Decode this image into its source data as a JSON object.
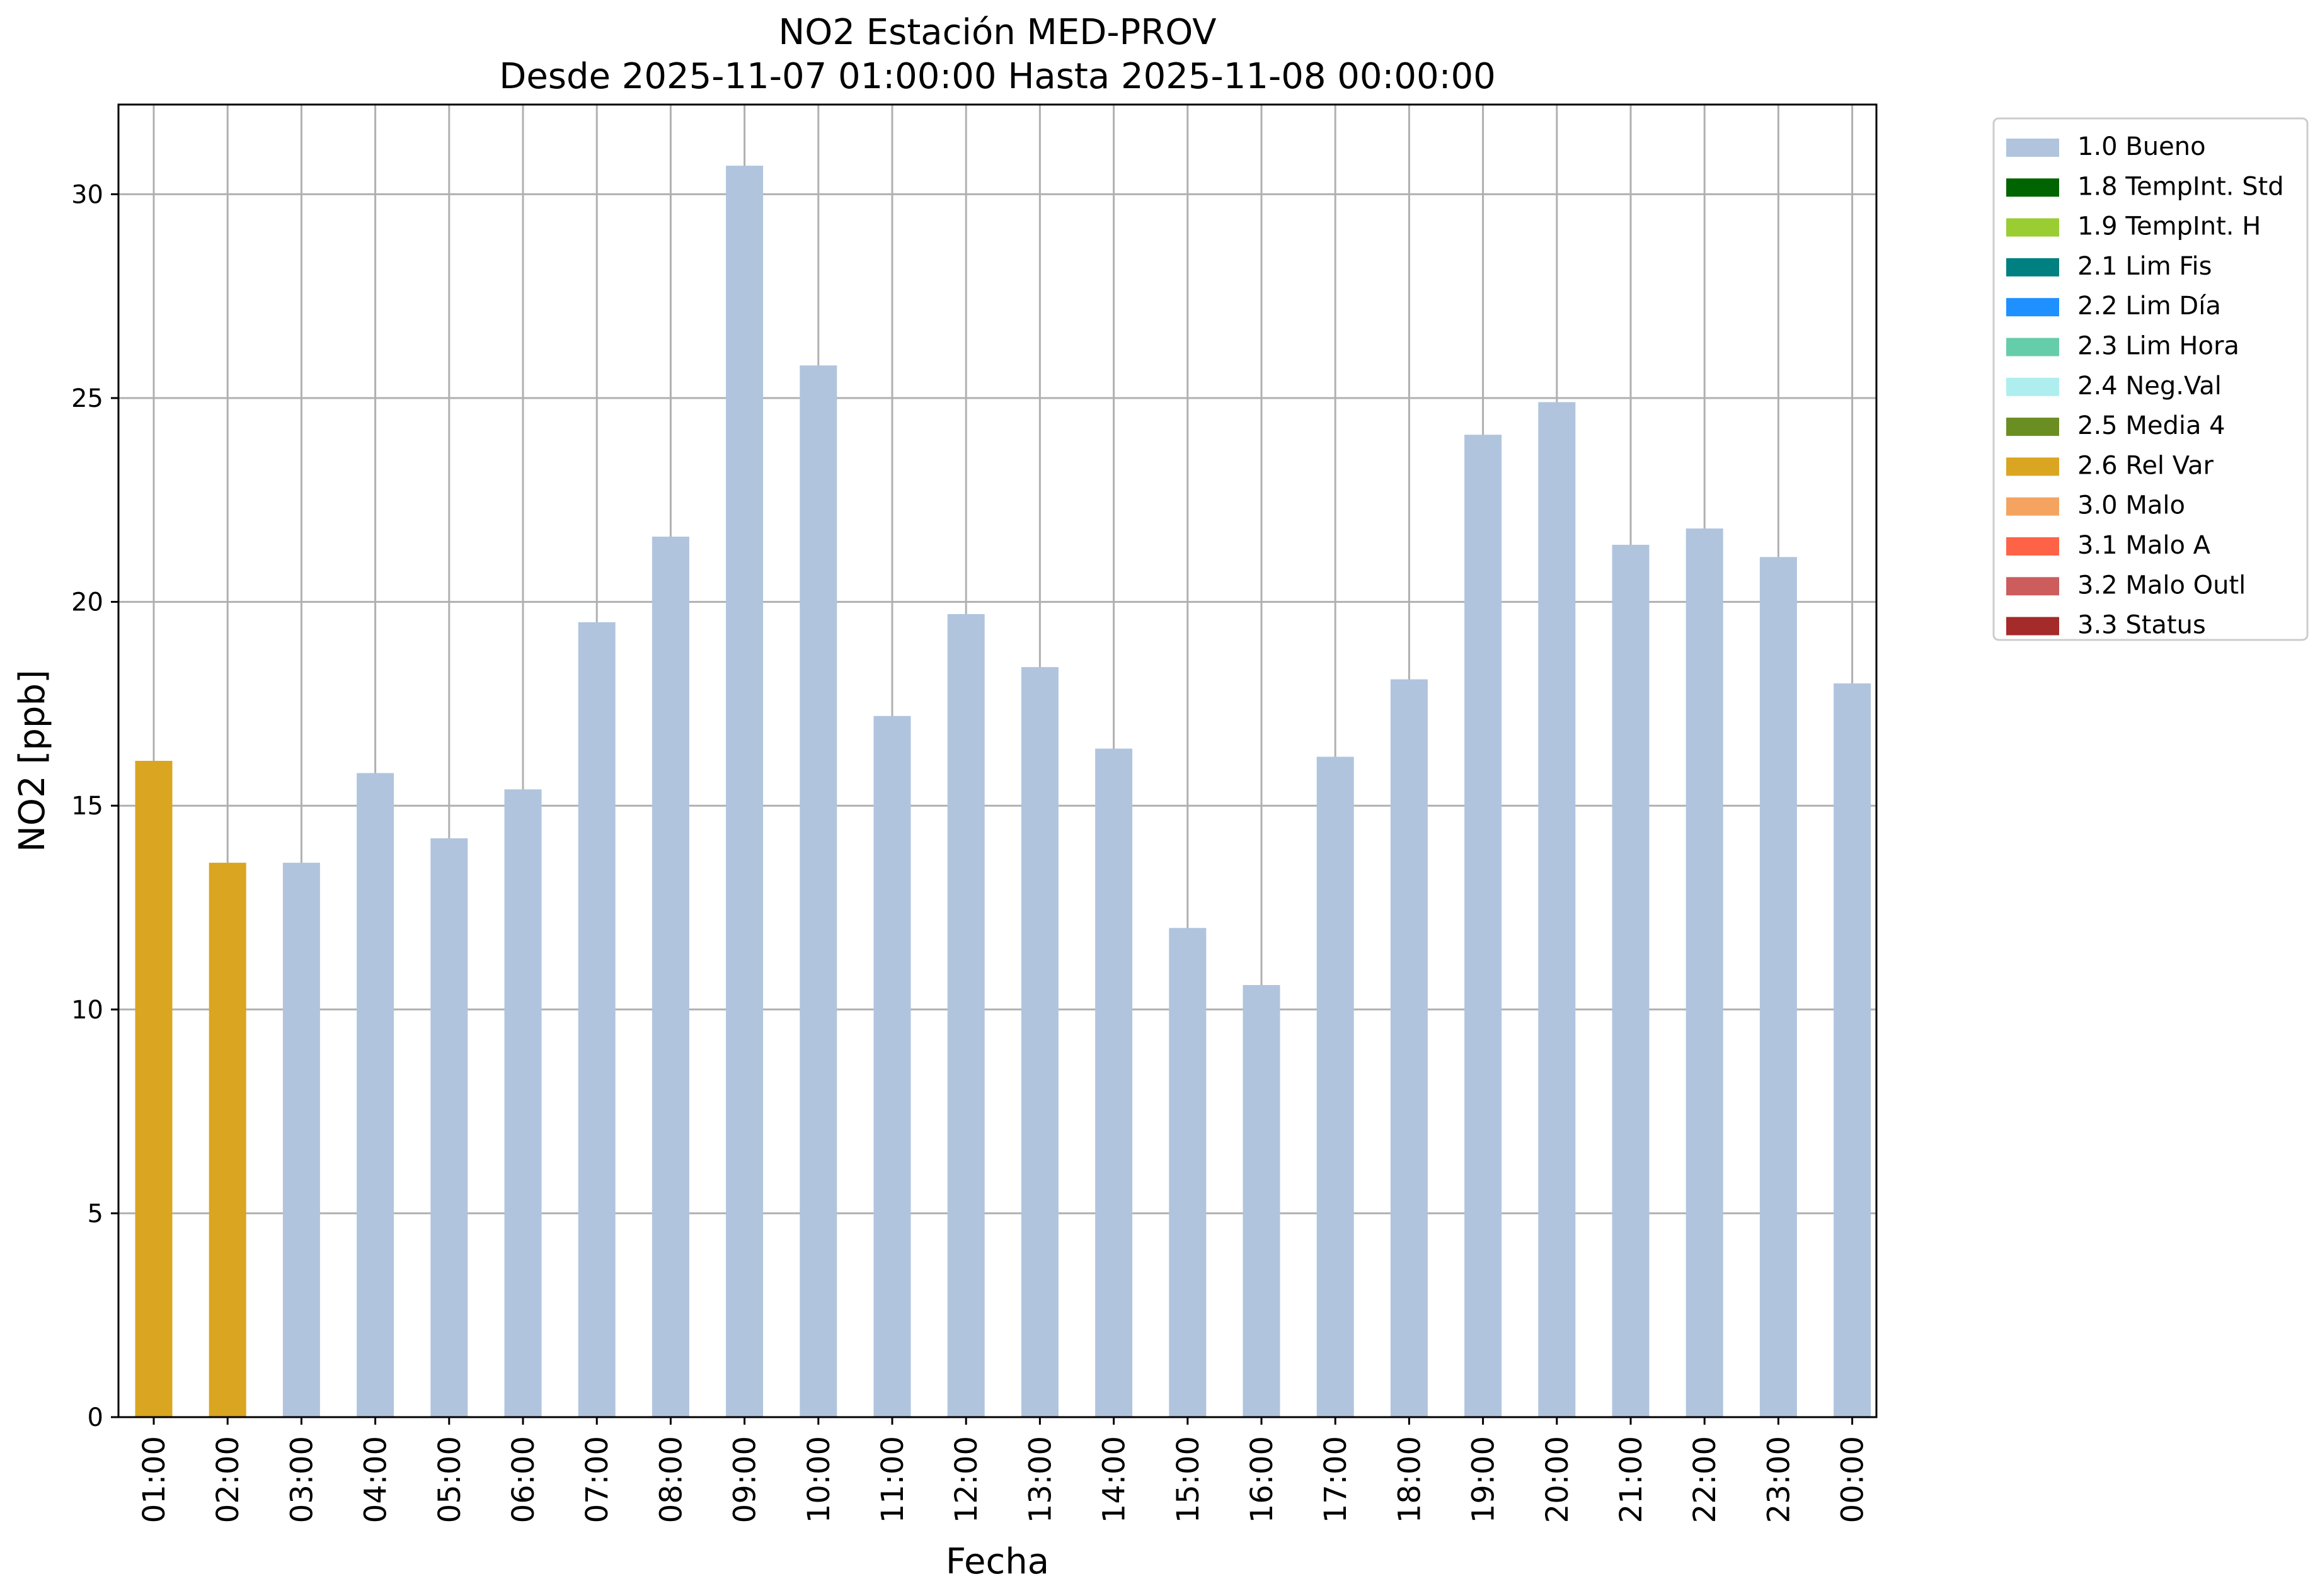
{
  "chart_data": {
    "type": "bar",
    "title": "NO2 Estación MED-PROV",
    "subtitle": "Desde 2025-11-07 01:00:00 Hasta 2025-11-08 00:00:00",
    "xlabel": "Fecha",
    "ylabel": "NO2 [ppb]",
    "ylim": [
      0,
      32.2
    ],
    "yticks": [
      0,
      5,
      10,
      15,
      20,
      25,
      30
    ],
    "grid": true,
    "legend_position": "outside-top-right",
    "categories": [
      "01:00",
      "02:00",
      "03:00",
      "04:00",
      "05:00",
      "06:00",
      "07:00",
      "08:00",
      "09:00",
      "10:00",
      "11:00",
      "12:00",
      "13:00",
      "14:00",
      "15:00",
      "16:00",
      "17:00",
      "18:00",
      "19:00",
      "20:00",
      "21:00",
      "22:00",
      "23:00",
      "00:00"
    ],
    "values": [
      16.1,
      13.6,
      13.6,
      15.8,
      14.2,
      15.4,
      19.5,
      21.6,
      30.7,
      25.8,
      17.2,
      19.7,
      18.4,
      16.4,
      12.0,
      10.6,
      16.2,
      18.1,
      24.1,
      24.9,
      21.4,
      21.8,
      21.1,
      18.0
    ],
    "flags": [
      "2.6 Rel Var",
      "2.6 Rel Var",
      "1.0 Bueno",
      "1.0 Bueno",
      "1.0 Bueno",
      "1.0 Bueno",
      "1.0 Bueno",
      "1.0 Bueno",
      "1.0 Bueno",
      "1.0 Bueno",
      "1.0 Bueno",
      "1.0 Bueno",
      "1.0 Bueno",
      "1.0 Bueno",
      "1.0 Bueno",
      "1.0 Bueno",
      "1.0 Bueno",
      "1.0 Bueno",
      "1.0 Bueno",
      "1.0 Bueno",
      "1.0 Bueno",
      "1.0 Bueno",
      "1.0 Bueno",
      "1.0 Bueno"
    ],
    "legend": [
      {
        "label": "1.0 Bueno",
        "color": "#b0c4de"
      },
      {
        "label": "1.8 TempInt. Std",
        "color": "#006400"
      },
      {
        "label": "1.9 TempInt. H",
        "color": "#9acd32"
      },
      {
        "label": "2.1 Lim Fis",
        "color": "#008080"
      },
      {
        "label": "2.2 Lim Día",
        "color": "#1e90ff"
      },
      {
        "label": "2.3 Lim Hora",
        "color": "#66cdaa"
      },
      {
        "label": "2.4 Neg.Val",
        "color": "#afeeee"
      },
      {
        "label": "2.5 Media 4",
        "color": "#6b8e23"
      },
      {
        "label": "2.6 Rel Var",
        "color": "#daa520"
      },
      {
        "label": "3.0 Malo",
        "color": "#f4a460"
      },
      {
        "label": "3.1 Malo A",
        "color": "#ff6347"
      },
      {
        "label": "3.2 Malo Outl",
        "color": "#cd5c5c"
      },
      {
        "label": "3.3 Status",
        "color": "#a52a2a"
      }
    ]
  }
}
